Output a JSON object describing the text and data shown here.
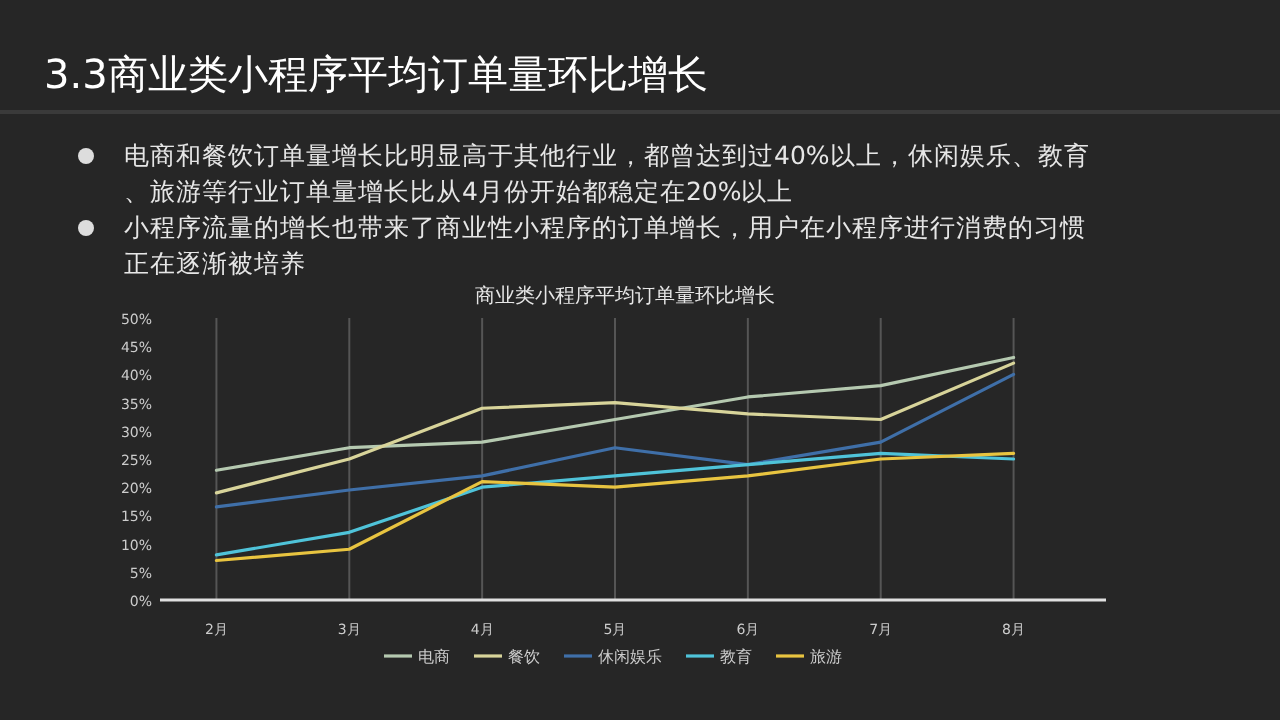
{
  "chart_data": {
    "type": "line",
    "title": "3.3商业类小程序平均订单量环比增长",
    "subtitle": "商业类小程序平均订单量环比增长",
    "annotations": [
      "电商和餐饮订单量增长比明显高于其他行业，都曾达到过40%以上，休闲娱乐、教育、旅游等行业订单量增长比从4月份开始都稳定在20%以上",
      "小程序流量的增长也带来了商业性小程序的订单增长，用户在小程序进行消费的习惯正在逐渐被培养"
    ],
    "categories": [
      "2月",
      "3月",
      "4月",
      "5月",
      "6月",
      "7月",
      "8月"
    ],
    "series": [
      {
        "name": "电商",
        "color": "#b5c9b0",
        "values": [
          23,
          27,
          28,
          32,
          36,
          38,
          43
        ]
      },
      {
        "name": "餐饮",
        "color": "#d8d49a",
        "values": [
          19,
          25,
          34,
          35,
          33,
          32,
          42
        ]
      },
      {
        "name": "休闲娱乐",
        "color": "#3f6fa8",
        "values": [
          16.5,
          19.5,
          22,
          27,
          24,
          28,
          40
        ]
      },
      {
        "name": "教育",
        "color": "#4fc3d9",
        "values": [
          8,
          12,
          20,
          22,
          24,
          26,
          25
        ]
      },
      {
        "name": "旅游",
        "color": "#e8c440",
        "values": [
          7,
          9,
          21,
          20,
          22,
          25,
          26
        ]
      }
    ],
    "ylim": [
      0,
      50
    ],
    "yticks": [
      {
        "value": 0,
        "label": "0%"
      },
      {
        "value": 5,
        "label": "5%"
      },
      {
        "value": 10,
        "label": "10%"
      },
      {
        "value": 15,
        "label": "15%"
      },
      {
        "value": 20,
        "label": "20%"
      },
      {
        "value": 25,
        "label": "25%"
      },
      {
        "value": 30,
        "label": "30%"
      },
      {
        "value": 35,
        "label": "35%"
      },
      {
        "value": 40,
        "label": "40%"
      },
      {
        "value": 45,
        "label": "45%"
      },
      {
        "value": 50,
        "label": "50%"
      }
    ],
    "grid": "x",
    "legend": "bottom",
    "marker": "none",
    "line_style": "solid"
  }
}
